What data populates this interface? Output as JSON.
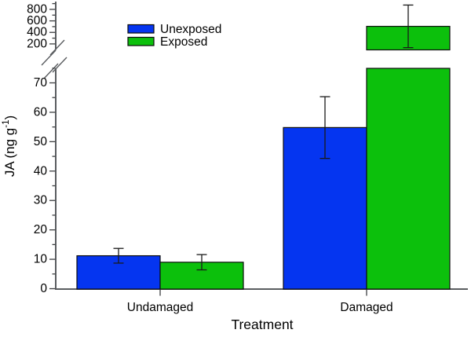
{
  "figure": {
    "y_title": {
      "main": "JA (ng g",
      "sup": "-1",
      "close": ")"
    }
  },
  "chart_data": {
    "type": "bar",
    "title": "",
    "xlabel": "Treatment",
    "ylabel": "JA (ng g-1)",
    "categories": [
      "Undamaged",
      "Damaged"
    ],
    "series": [
      {
        "name": "Unexposed",
        "color": "#0535f0",
        "values": [
          11.2,
          54.8
        ],
        "errors": [
          2.5,
          10.5
        ]
      },
      {
        "name": "Exposed",
        "color": "#0cc00c",
        "values": [
          9.0,
          505
        ],
        "errors": [
          2.6,
          370
        ]
      }
    ],
    "y_axis": {
      "broken": true,
      "lower": {
        "min": 0,
        "max": 74.8,
        "major_ticks": [
          0,
          10,
          20,
          30,
          40,
          50,
          60,
          70
        ],
        "minor_ticks": [
          5,
          15,
          25,
          35,
          45,
          55,
          65,
          75
        ]
      },
      "upper": {
        "min": 104,
        "max": 964,
        "major_ticks": [
          200,
          400,
          600,
          800
        ],
        "minor_ticks": [
          300,
          500,
          700,
          900
        ]
      }
    },
    "grid": false,
    "legend_position": "top-left-inside",
    "error_bar_color": "#1a1a1a",
    "axis_color": "#5a5d60"
  }
}
